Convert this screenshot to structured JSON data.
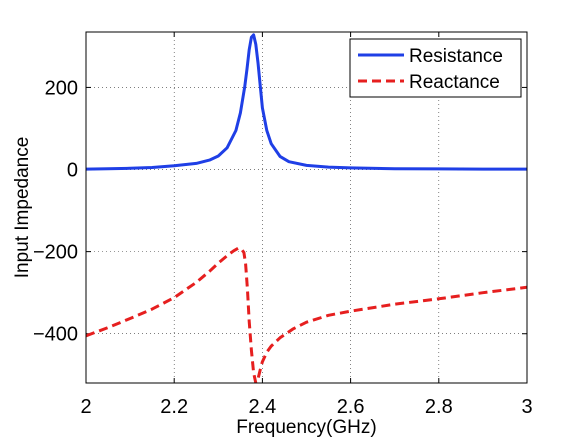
{
  "chart_data": {
    "type": "line",
    "xlabel": "Frequency(GHz)",
    "ylabel": "Input Impedance",
    "xlim": [
      2,
      3
    ],
    "ylim": [
      -520,
      335
    ],
    "x_ticks": [
      2,
      2.2,
      2.4,
      2.6,
      2.8,
      3
    ],
    "x_tick_labels": [
      "2",
      "2.2",
      "2.4",
      "2.6",
      "2.8",
      "3"
    ],
    "y_ticks": [
      -400,
      -200,
      0,
      200
    ],
    "y_tick_labels": [
      "−400",
      "−200",
      "0",
      "200"
    ],
    "grid": true,
    "legend_position": "top-right",
    "series": [
      {
        "name": "Resistance",
        "color": "#1f3fe6",
        "style": "solid",
        "x": [
          2.0,
          2.05,
          2.1,
          2.15,
          2.2,
          2.25,
          2.28,
          2.3,
          2.32,
          2.34,
          2.35,
          2.36,
          2.365,
          2.37,
          2.375,
          2.38,
          2.385,
          2.39,
          2.395,
          2.4,
          2.41,
          2.42,
          2.44,
          2.46,
          2.5,
          2.55,
          2.6,
          2.7,
          2.8,
          2.9,
          3.0
        ],
        "y": [
          1,
          2,
          3,
          5,
          9,
          15,
          23,
          33,
          53,
          95,
          138,
          203,
          245,
          292,
          322,
          328,
          305,
          260,
          205,
          150,
          95,
          63,
          32,
          19,
          10,
          6,
          4,
          2,
          1.5,
          1,
          1
        ]
      },
      {
        "name": "Reactance",
        "color": "#e61f1f",
        "style": "dashed",
        "x": [
          2.0,
          2.05,
          2.1,
          2.15,
          2.2,
          2.25,
          2.28,
          2.3,
          2.32,
          2.335,
          2.345,
          2.352,
          2.358,
          2.362,
          2.366,
          2.37,
          2.375,
          2.38,
          2.385,
          2.39,
          2.395,
          2.4,
          2.41,
          2.42,
          2.44,
          2.47,
          2.5,
          2.55,
          2.6,
          2.7,
          2.8,
          2.9,
          3.0
        ],
        "y": [
          -405,
          -385,
          -363,
          -340,
          -312,
          -275,
          -248,
          -228,
          -210,
          -198,
          -192,
          -193,
          -202,
          -230,
          -290,
          -370,
          -440,
          -495,
          -520,
          -510,
          -488,
          -468,
          -445,
          -430,
          -410,
          -388,
          -372,
          -355,
          -345,
          -328,
          -315,
          -300,
          -287
        ]
      }
    ]
  }
}
